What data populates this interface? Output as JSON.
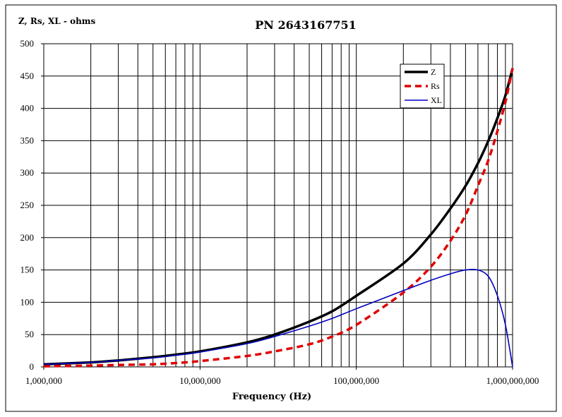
{
  "chart_data": {
    "type": "line",
    "title": "PN 2643167751",
    "ylabel": "Z, Rs, XL - ohms",
    "xlabel": "Frequency (Hz)",
    "xscale": "log",
    "xlim": [
      1000000,
      1000000000
    ],
    "ylim": [
      0,
      500
    ],
    "grid": true,
    "legend_position": "top-right",
    "x_tick_labels": [
      "1,000,000",
      "10,000,000",
      "100,000,000",
      "1,000,000,000"
    ],
    "y_tick_labels": [
      "0",
      "50",
      "100",
      "150",
      "200",
      "250",
      "300",
      "350",
      "400",
      "450",
      "500"
    ],
    "x": [
      1000000,
      2000000,
      3000000,
      5000000,
      7000000,
      10000000,
      20000000,
      30000000,
      50000000,
      70000000,
      100000000,
      200000000,
      300000000,
      400000000,
      500000000,
      600000000,
      700000000,
      800000000,
      900000000,
      1000000000
    ],
    "series": [
      {
        "name": "Z",
        "color": "#000000",
        "style": "solid",
        "values": [
          4,
          7,
          10,
          15,
          19,
          24,
          38,
          50,
          70,
          86,
          110,
          160,
          205,
          245,
          280,
          315,
          350,
          385,
          420,
          462
        ]
      },
      {
        "name": "Rs",
        "color": "#e00000",
        "style": "dashed",
        "values": [
          1,
          2,
          3,
          4,
          6,
          9,
          17,
          24,
          35,
          47,
          65,
          115,
          155,
          195,
          235,
          280,
          320,
          365,
          410,
          462
        ]
      },
      {
        "name": "XL",
        "color": "#0000c0",
        "style": "solid",
        "values": [
          4,
          7,
          10,
          14,
          18,
          23,
          36,
          47,
          63,
          75,
          90,
          118,
          134,
          144,
          150,
          150,
          140,
          110,
          65,
          0
        ]
      }
    ]
  }
}
